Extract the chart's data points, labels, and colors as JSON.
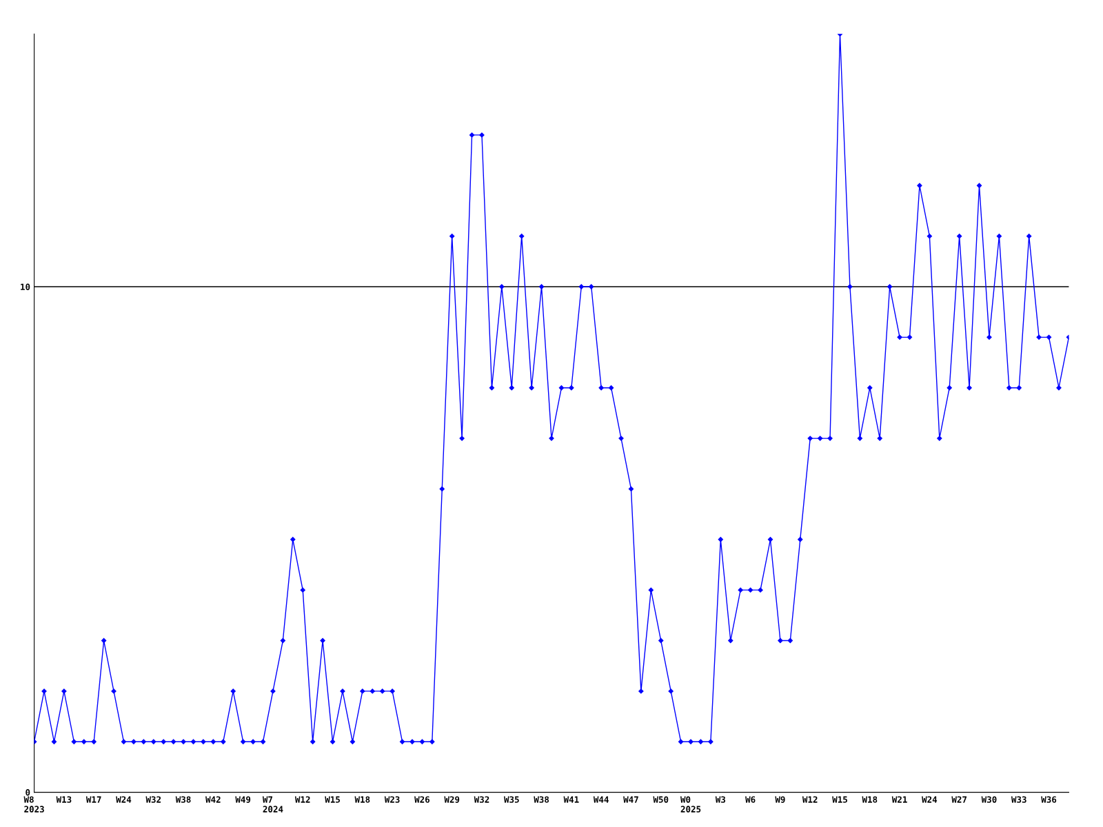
{
  "chart_data": {
    "type": "line",
    "categories": [
      "W8\n2023",
      null,
      null,
      "W13",
      null,
      null,
      "W17",
      null,
      null,
      "W24",
      null,
      null,
      "W32",
      null,
      null,
      "W38",
      null,
      null,
      "W42",
      null,
      null,
      "W49",
      null,
      null,
      "W7\n2024",
      null,
      null,
      "W12",
      null,
      null,
      "W15",
      null,
      null,
      "W18",
      null,
      null,
      "W23",
      null,
      null,
      "W26",
      null,
      null,
      "W29",
      null,
      null,
      "W32",
      null,
      null,
      "W35",
      null,
      null,
      "W38",
      null,
      null,
      "W41",
      null,
      null,
      "W44",
      null,
      null,
      "W47",
      null,
      null,
      "W50",
      null,
      null,
      "W0\n2025",
      null,
      null,
      "W3",
      null,
      null,
      "W6",
      null,
      null,
      "W9",
      null,
      null,
      "W12",
      null,
      null,
      "W15",
      null,
      null,
      "W18",
      null,
      null,
      "W21",
      null,
      null,
      "W24",
      null,
      null,
      "W27",
      null,
      null,
      "W30",
      null,
      null,
      "W33",
      null,
      null,
      "W36",
      null,
      null
    ],
    "series": [
      {
        "color": "#0000ff",
        "values": [
          1,
          2,
          1,
          2,
          1,
          1,
          1,
          3,
          2,
          1,
          1,
          1,
          1,
          1,
          1,
          1,
          1,
          1,
          1,
          1,
          2,
          1,
          1,
          1,
          2,
          3,
          5,
          4,
          1,
          3,
          1,
          2,
          1,
          2,
          2,
          2,
          2,
          1,
          1,
          1,
          1,
          6,
          11,
          7,
          13,
          13,
          8,
          10,
          8,
          11,
          8,
          10,
          7,
          8,
          8,
          10,
          10,
          8,
          8,
          7,
          6,
          2,
          4,
          3,
          2,
          1,
          1,
          1,
          1,
          5,
          3,
          4,
          4,
          4,
          5,
          3,
          3,
          5,
          7,
          7,
          7,
          15,
          10,
          7,
          8,
          7,
          10,
          9,
          9,
          12,
          11,
          7,
          8,
          11,
          8,
          12,
          9,
          11,
          8,
          8,
          11,
          9,
          9,
          8,
          9
        ]
      }
    ],
    "ylim": [
      0,
      15
    ],
    "yticks": [
      0,
      10
    ],
    "ref_lines": [
      {
        "axis": "y",
        "value": 10,
        "color": "#000000"
      }
    ],
    "marker": "diamond",
    "line_style": "solid",
    "grid": false,
    "legend": false
  }
}
